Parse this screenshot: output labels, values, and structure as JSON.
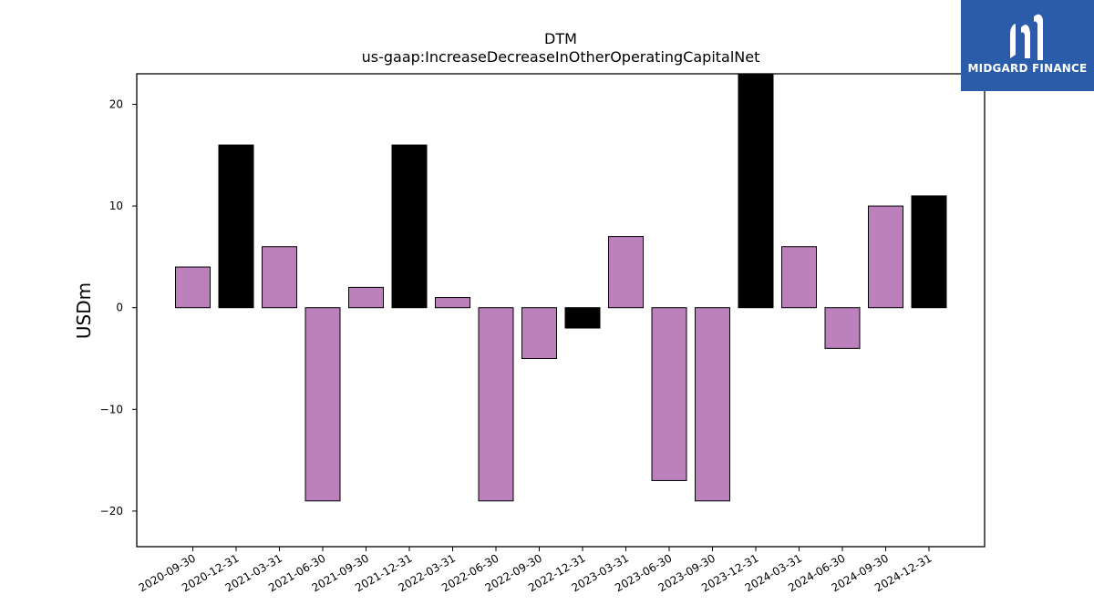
{
  "title": "DTM",
  "subtitle": "us-gaap:IncreaseDecreaseInOtherOperatingCapitalNet",
  "logo": {
    "text": "MIDGARD FINANCE",
    "bg": "#2a5caa"
  },
  "chart_data": {
    "type": "bar",
    "title": "DTM",
    "subtitle": "us-gaap:IncreaseDecreaseInOtherOperatingCapitalNet",
    "xlabel": "",
    "ylabel": "USDm",
    "ylim": [
      -23.5,
      23
    ],
    "yticks": [
      -20,
      -10,
      0,
      10,
      20
    ],
    "ytick_labels": [
      "−20",
      "−10",
      "0",
      "10",
      "20"
    ],
    "grid": false,
    "categories": [
      "2020-09-30",
      "2020-12-31",
      "2021-03-31",
      "2021-06-30",
      "2021-09-30",
      "2021-12-31",
      "2022-03-31",
      "2022-06-30",
      "2022-09-30",
      "2022-12-31",
      "2023-03-31",
      "2023-06-30",
      "2023-09-30",
      "2023-12-31",
      "2024-03-31",
      "2024-06-30",
      "2024-09-30",
      "2024-12-31"
    ],
    "values": [
      4,
      16,
      6,
      -19,
      2,
      16,
      1,
      -19,
      -5,
      -2,
      7,
      -17,
      -19,
      23,
      6,
      -4,
      10,
      11
    ],
    "colors": {
      "quarterly": "#bc80bd",
      "year_end": "#000000"
    },
    "year_end_flags": [
      false,
      true,
      false,
      false,
      false,
      true,
      false,
      false,
      false,
      true,
      false,
      false,
      false,
      true,
      false,
      false,
      false,
      true
    ]
  }
}
